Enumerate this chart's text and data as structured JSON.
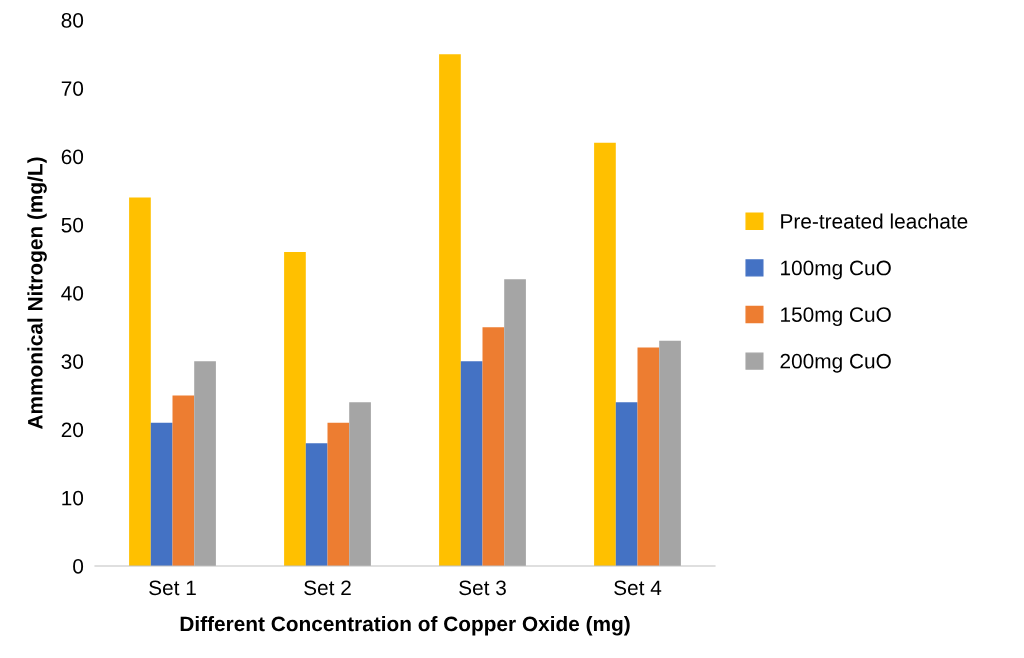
{
  "chart_data": {
    "type": "bar",
    "xlabel": "Different Concentration of Copper Oxide (mg)",
    "ylabel": "Ammonical Nitrogen (mg/L)",
    "categories": [
      "Set 1",
      "Set 2",
      "Set 3",
      "Set 4"
    ],
    "series": [
      {
        "name": "Pre-treated leachate",
        "color": "#ffc000",
        "values": [
          54,
          46,
          75,
          62
        ]
      },
      {
        "name": "100mg CuO",
        "color": "#4472c4",
        "values": [
          21,
          18,
          30,
          24
        ]
      },
      {
        "name": "150mg CuO",
        "color": "#ed7d31",
        "values": [
          25,
          21,
          35,
          32
        ]
      },
      {
        "name": "200mg CuO",
        "color": "#a5a5a5",
        "values": [
          30,
          24,
          42,
          33
        ]
      }
    ],
    "ylim": [
      0,
      80
    ],
    "yticks": [
      0,
      10,
      20,
      30,
      40,
      50,
      60,
      70,
      80
    ],
    "grid": false,
    "legend": "right"
  }
}
